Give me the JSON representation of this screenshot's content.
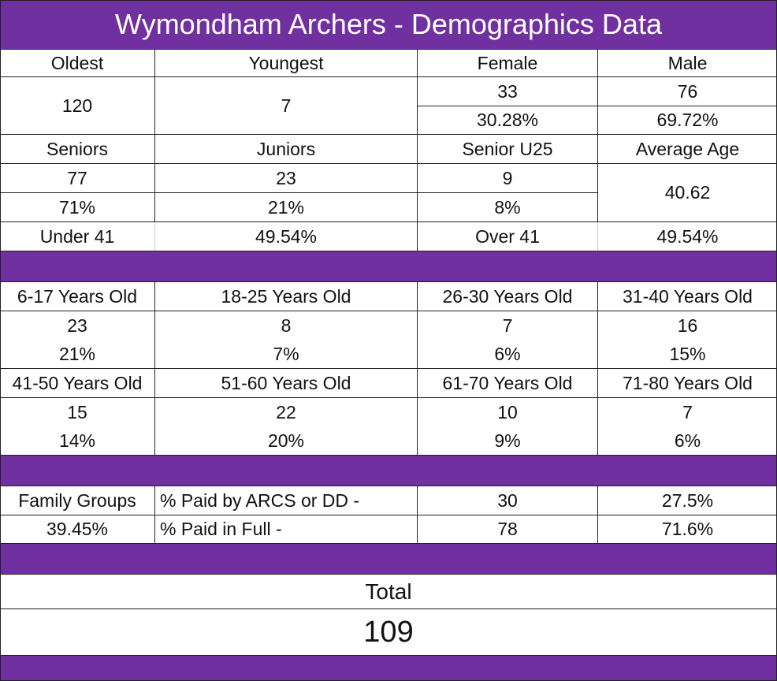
{
  "title": "Wymondham Archers - Demographics Data",
  "block1": {
    "oldest_label": "Oldest",
    "oldest_value": "120",
    "youngest_label": "Youngest",
    "youngest_value": "7",
    "female_label": "Female",
    "female_count": "33",
    "female_pct": "30.28%",
    "male_label": "Male",
    "male_count": "76",
    "male_pct": "69.72%"
  },
  "block2": {
    "seniors_label": "Seniors",
    "seniors_count": "77",
    "seniors_pct": "71%",
    "juniors_label": "Juniors",
    "juniors_count": "23",
    "juniors_pct": "21%",
    "senior_u25_label": "Senior U25",
    "senior_u25_count": "9",
    "senior_u25_pct": "8%",
    "average_age_label": "Average Age",
    "average_age_value": "40.62"
  },
  "block3": {
    "under_label": "Under 41",
    "under_pct": "49.54%",
    "over_label": "Over 41",
    "over_pct": "49.54%"
  },
  "age_groups_row1": [
    {
      "label": "6-17 Years Old",
      "count": "23",
      "pct": "21%"
    },
    {
      "label": "18-25 Years Old",
      "count": "8",
      "pct": "7%"
    },
    {
      "label": "26-30 Years Old",
      "count": "7",
      "pct": "6%"
    },
    {
      "label": "31-40 Years Old",
      "count": "16",
      "pct": "15%"
    }
  ],
  "age_groups_row2": [
    {
      "label": "41-50 Years Old",
      "count": "15",
      "pct": "14%"
    },
    {
      "label": "51-60 Years Old",
      "count": "22",
      "pct": "20%"
    },
    {
      "label": "61-70 Years Old",
      "count": "10",
      "pct": "9%"
    },
    {
      "label": "71-80 Years Old",
      "count": "7",
      "pct": "6%"
    }
  ],
  "payments": {
    "family_label": "Family Groups",
    "family_pct": "39.45%",
    "arcs_label": "% Paid by ARCS or DD -",
    "arcs_count": "30",
    "arcs_pct": "27.5%",
    "full_label": "% Paid in Full -",
    "full_count": "78",
    "full_pct": "71.6%"
  },
  "total": {
    "label": "Total",
    "value": "109"
  },
  "colors": {
    "header_bg": "#7030a0",
    "header_text": "#ffffff",
    "grid": "#222222"
  }
}
